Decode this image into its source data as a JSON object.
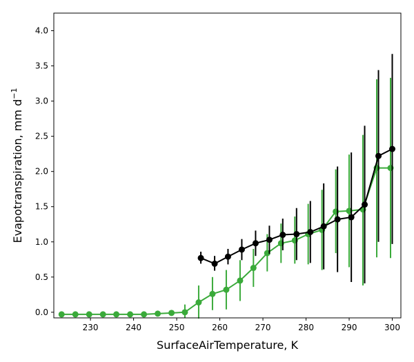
{
  "chart_data": {
    "type": "line",
    "title": "",
    "xlabel": "SurfaceAirTemperature,  K",
    "ylabel": "Evapotranspiration,  mm d",
    "ylabel_sup": "−1",
    "xlim": [
      221.5,
      302
    ],
    "ylim": [
      -0.08,
      4.25
    ],
    "xticks": [
      230,
      240,
      250,
      260,
      270,
      280,
      290,
      300
    ],
    "xtick_labels": [
      "230",
      "240",
      "250",
      "260",
      "270",
      "280",
      "290",
      "300"
    ],
    "yticks": [
      0.0,
      0.5,
      1.0,
      1.5,
      2.0,
      2.5,
      3.0,
      3.5,
      4.0
    ],
    "ytick_labels": [
      "0.0",
      "0.5",
      "1.0",
      "1.5",
      "2.0",
      "2.5",
      "3.0",
      "3.5",
      "4.0"
    ],
    "grid": false,
    "series": [
      {
        "name": "black series",
        "color": "#000000",
        "x": [
          255.6,
          258.8,
          261.9,
          265.1,
          268.3,
          271.5,
          274.6,
          277.8,
          281.0,
          284.1,
          287.3,
          290.5,
          293.6,
          296.8,
          300.0
        ],
        "y": [
          0.77,
          0.69,
          0.79,
          0.89,
          0.98,
          1.03,
          1.1,
          1.11,
          1.14,
          1.22,
          1.32,
          1.35,
          1.53,
          2.22,
          2.32
        ],
        "err_low": [
          0.69,
          0.59,
          0.68,
          0.74,
          0.8,
          0.83,
          0.88,
          0.74,
          0.7,
          0.61,
          0.57,
          0.43,
          0.41,
          1.0,
          0.97
        ],
        "err_high": [
          0.86,
          0.8,
          0.9,
          1.04,
          1.16,
          1.23,
          1.33,
          1.48,
          1.58,
          1.83,
          2.07,
          2.27,
          2.65,
          3.44,
          3.67
        ]
      },
      {
        "name": "green series",
        "color": "#3aaa3a",
        "x": [
          223.3,
          226.5,
          229.7,
          232.9,
          236.0,
          239.2,
          242.4,
          245.6,
          248.8,
          251.9,
          255.1,
          258.3,
          261.5,
          264.7,
          267.8,
          271.0,
          274.2,
          277.4,
          280.5,
          283.7,
          286.9,
          290.0,
          293.2,
          296.4,
          299.6
        ],
        "y": [
          -0.03,
          -0.03,
          -0.03,
          -0.03,
          -0.03,
          -0.03,
          -0.03,
          -0.02,
          -0.01,
          0.0,
          0.14,
          0.26,
          0.32,
          0.45,
          0.63,
          0.84,
          0.98,
          1.02,
          1.11,
          1.17,
          1.43,
          1.44,
          1.46,
          2.05,
          2.05
        ],
        "err_low": [
          -0.03,
          -0.03,
          -0.03,
          -0.03,
          -0.03,
          -0.03,
          -0.03,
          -0.02,
          -0.01,
          -0.08,
          -0.09,
          0.03,
          0.04,
          0.16,
          0.36,
          0.58,
          0.7,
          0.69,
          0.68,
          0.6,
          0.84,
          0.64,
          0.38,
          0.78,
          0.77
        ],
        "err_high": [
          -0.03,
          -0.03,
          -0.03,
          -0.03,
          -0.03,
          -0.03,
          -0.03,
          -0.02,
          0.01,
          0.11,
          0.38,
          0.5,
          0.6,
          0.74,
          0.9,
          1.11,
          1.26,
          1.36,
          1.54,
          1.74,
          2.03,
          2.24,
          2.52,
          3.31,
          3.33
        ]
      }
    ]
  }
}
